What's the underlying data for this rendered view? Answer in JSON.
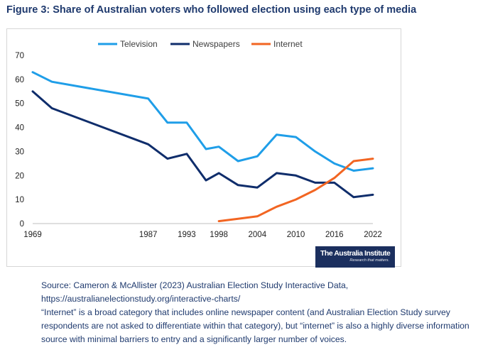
{
  "figure": {
    "title": "Figure 3: Share of Australian voters who followed election using each type of media"
  },
  "chart_data": {
    "type": "line",
    "title": "Figure 3: Share of Australian voters who followed election using each type of media",
    "xlabel": "",
    "ylabel": "",
    "x": [
      1969,
      1972,
      1987,
      1990,
      1993,
      1996,
      1998,
      2001,
      2004,
      2007,
      2010,
      2013,
      2016,
      2019,
      2022
    ],
    "x_tick_labels": [
      "1969",
      "1987",
      "1993",
      "1998",
      "2004",
      "2010",
      "2016",
      "2022"
    ],
    "ylim": [
      0,
      70
    ],
    "y_ticks": [
      0,
      10,
      20,
      30,
      40,
      50,
      60,
      70
    ],
    "grid": false,
    "legend_position": "top",
    "series": [
      {
        "name": "Television",
        "color": "#1f9ee8",
        "values": [
          63,
          59,
          52,
          42,
          42,
          31,
          32,
          26,
          28,
          37,
          36,
          30,
          25,
          22,
          23
        ]
      },
      {
        "name": "Newspapers",
        "color": "#0f2d6b",
        "values": [
          55,
          48,
          33,
          27,
          29,
          18,
          21,
          16,
          15,
          21,
          20,
          17,
          17,
          11,
          12
        ]
      },
      {
        "name": "Internet",
        "color": "#f26522",
        "values": [
          null,
          null,
          null,
          null,
          null,
          null,
          1,
          2,
          3,
          7,
          10,
          14,
          19,
          26,
          27
        ]
      }
    ]
  },
  "logo": {
    "name": "The Australia Institute",
    "tagline": "Research that matters."
  },
  "notes": {
    "source_line1": "Source: Cameron & McAllister (2023) Australian Election Study Interactive Data,",
    "source_line2": "https://australianelectionstudy.org/interactive-charts/",
    "note": "“Internet” is a broad category that includes online newspaper content (and Australian Election Study survey respondents are not asked to differentiate within that category), but “internet” is also a highly diverse information source with minimal barriers to entry and a significantly larger number of voices."
  }
}
